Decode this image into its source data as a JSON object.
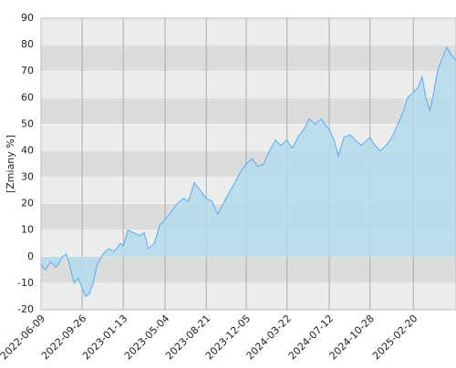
{
  "chart_data": {
    "type": "area",
    "y_label": "[Zmiany %]",
    "x": [
      "2022-06-09",
      "2022-06-20",
      "2022-07-05",
      "2022-07-20",
      "2022-08-05",
      "2022-08-15",
      "2022-08-25",
      "2022-09-05",
      "2022-09-15",
      "2022-09-26",
      "2022-10-05",
      "2022-10-15",
      "2022-10-25",
      "2022-11-05",
      "2022-11-20",
      "2022-12-05",
      "2022-12-20",
      "2023-01-05",
      "2023-01-13",
      "2023-01-25",
      "2023-02-10",
      "2023-02-25",
      "2023-03-10",
      "2023-03-20",
      "2023-04-05",
      "2023-04-20",
      "2023-05-04",
      "2023-05-20",
      "2023-06-05",
      "2023-06-20",
      "2023-07-05",
      "2023-07-20",
      "2023-08-05",
      "2023-08-21",
      "2023-09-05",
      "2023-09-20",
      "2023-10-05",
      "2023-10-20",
      "2023-11-05",
      "2023-11-20",
      "2023-12-05",
      "2023-12-20",
      "2024-01-05",
      "2024-01-20",
      "2024-02-05",
      "2024-02-20",
      "2024-03-05",
      "2024-03-22",
      "2024-04-05",
      "2024-04-20",
      "2024-05-05",
      "2024-05-20",
      "2024-06-05",
      "2024-06-20",
      "2024-07-12",
      "2024-07-25",
      "2024-08-05",
      "2024-08-20",
      "2024-09-05",
      "2024-09-20",
      "2024-10-05",
      "2024-10-28",
      "2024-11-10",
      "2024-11-25",
      "2024-12-10",
      "2024-12-25",
      "2025-01-10",
      "2025-01-25",
      "2025-02-05",
      "2025-02-20",
      "2025-03-05",
      "2025-03-15",
      "2025-03-25",
      "2025-04-05",
      "2025-04-15",
      "2025-04-25",
      "2025-05-05",
      "2025-05-20",
      "2025-06-01",
      "2025-06-13"
    ],
    "values": [
      -3,
      -5,
      -2,
      -4,
      0,
      1,
      -4,
      -10,
      -8,
      -12,
      -15,
      -14,
      -10,
      -3,
      1,
      3,
      2,
      5,
      4,
      10,
      9,
      8,
      9,
      3,
      5,
      12,
      14,
      17,
      20,
      22,
      21,
      28,
      25,
      22,
      21,
      16,
      20,
      24,
      28,
      32,
      35,
      37,
      34,
      35,
      40,
      44,
      42,
      44,
      41,
      45,
      48,
      52,
      50,
      52,
      48,
      44,
      38,
      45,
      46,
      44,
      42,
      45,
      42,
      40,
      42,
      45,
      50,
      55,
      60,
      62,
      64,
      68,
      60,
      55,
      62,
      70,
      74,
      79,
      76,
      74
    ],
    "line_color": "#5aaaf0",
    "fill_color": "#b4dcec",
    "band_colors": [
      "#ececec",
      "#dcdcdc"
    ],
    "xlim": [
      "2022-06-09",
      "2025-06-13"
    ],
    "xticks": [
      "2022-06-09",
      "2022-09-26",
      "2023-01-13",
      "2023-05-04",
      "2023-08-21",
      "2023-12-05",
      "2024-03-22",
      "2024-07-12",
      "2024-10-28",
      "2025-02-20"
    ],
    "ylim": [
      -20,
      90
    ],
    "yticks": [
      -20,
      -10,
      0,
      10,
      20,
      30,
      40,
      50,
      60,
      70,
      80,
      90
    ]
  }
}
